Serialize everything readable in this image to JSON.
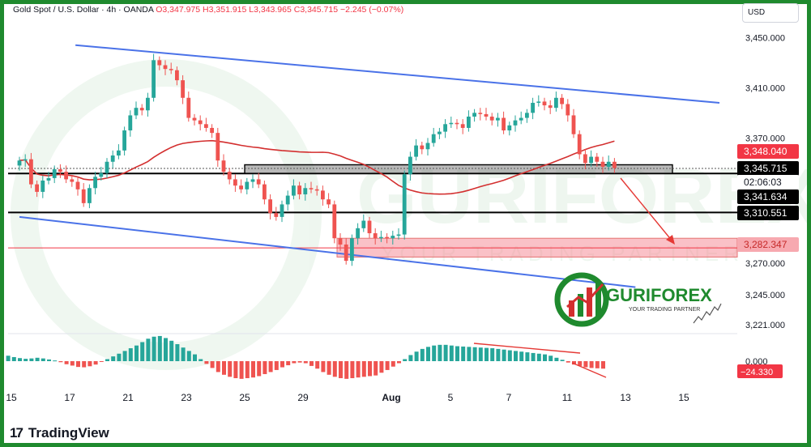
{
  "header": {
    "symbol": "Gold Spot / U.S. Dollar · 4h · OANDA",
    "open": "O3,347.975",
    "high": "H3,351.915",
    "low": "L3,343.965",
    "close": "C3,345.715",
    "change": "−2.245 (−0.07%)"
  },
  "currency_button": "USD",
  "brand": {
    "logo_glyph": "17",
    "name": "TradingView"
  },
  "watermark": {
    "name": "GURIFOREX",
    "tagline": "YOUR TRADING PARTNER"
  },
  "logo": {
    "name": "GURIFOREX",
    "tagline": "YOUR TRADING PARTNER"
  },
  "colors": {
    "bull": "#26a69a",
    "bear": "#ef5350",
    "trend": "#4a72e8",
    "zone": "#f5838f",
    "ma": "#d32f2f",
    "frame": "#1f8a2e"
  },
  "chart_data": {
    "type": "candlestick",
    "timeframe": "4h",
    "ylim": [
      3212,
      3480
    ],
    "y_ticks": [
      "3,450.000",
      "3,410.000",
      "3,370.000",
      "3,270.000",
      "3,245.000",
      "3,221.000"
    ],
    "x_ticks": [
      "15",
      "17",
      "21",
      "23",
      "25",
      "29",
      "Aug",
      "5",
      "7",
      "11",
      "13",
      "15"
    ],
    "price_labels": [
      {
        "text": "3,348.040",
        "value": 3348.04,
        "style": "red"
      },
      {
        "text": "3,345.715",
        "value": 3345.715,
        "style": "dark"
      },
      {
        "text": "02:06:03",
        "value": 3345.715,
        "style": "timer"
      },
      {
        "text": "3,341.634",
        "value": 3341.634,
        "style": "dark"
      },
      {
        "text": "3,310.551",
        "value": 3310.551,
        "style": "dark"
      },
      {
        "text": "3,282.347",
        "value": 3282.347,
        "style": "pink"
      }
    ],
    "horizontal_levels": [
      3341.634,
      3310.551
    ],
    "zone": {
      "low": 3275,
      "high": 3290
    },
    "support_line_value": 3282.347,
    "close_value": 3345.715,
    "channel_upper": [
      [
        4,
        3444
      ],
      [
        50,
        3398
      ]
    ],
    "channel_lower": [
      [
        0,
        3307
      ],
      [
        44,
        3251
      ]
    ],
    "closes": [
      3352,
      3353,
      3333,
      3327,
      3336,
      3338,
      3345,
      3343,
      3337,
      3335,
      3329,
      3318,
      3330,
      3339,
      3342,
      3351,
      3356,
      3360,
      3376,
      3388,
      3394,
      3392,
      3402,
      3432,
      3428,
      3425,
      3424,
      3416,
      3402,
      3386,
      3384,
      3381,
      3378,
      3374,
      3352,
      3343,
      3337,
      3332,
      3329,
      3335,
      3337,
      3333,
      3321,
      3310,
      3307,
      3317,
      3324,
      3332,
      3325,
      3330,
      3329,
      3328,
      3321,
      3317,
      3290,
      3285,
      3272,
      3290,
      3298,
      3304,
      3294,
      3290,
      3291,
      3290,
      3292,
      3293,
      3341,
      3355,
      3364,
      3361,
      3366,
      3373,
      3375,
      3381,
      3382,
      3381,
      3378,
      3387,
      3390,
      3389,
      3387,
      3384,
      3386,
      3376,
      3380,
      3384,
      3386,
      3390,
      3398,
      3399,
      3396,
      3394,
      3402,
      3397,
      3388,
      3373,
      3357,
      3350,
      3355,
      3351,
      3347,
      3351,
      3346
    ],
    "oscillator": {
      "zero_label": "0.000",
      "value_label": "−24.330",
      "values": [
        1.6,
        1.2,
        0.9,
        0.7,
        0.8,
        1.0,
        0.8,
        0.5,
        0.2,
        -0.3,
        -0.9,
        -1.3,
        -1.7,
        -1.8,
        -1.5,
        -1.0,
        -0.2,
        0.6,
        1.4,
        2.2,
        3.0,
        3.8,
        4.6,
        5.6,
        6.6,
        7.2,
        7.4,
        6.8,
        6.0,
        5.0,
        4.0,
        3.0,
        2.0,
        0.6,
        -0.8,
        -2.0,
        -3.2,
        -4.0,
        -4.6,
        -5.0,
        -5.2,
        -5.0,
        -4.8,
        -4.4,
        -3.8,
        -3.2,
        -2.6,
        -1.8,
        -1.2,
        -0.6,
        -0.4,
        -0.6,
        -1.4,
        -2.2,
        -3.2,
        -4.0,
        -4.6,
        -5.0,
        -5.2,
        -5.0,
        -4.8,
        -4.6,
        -4.4,
        -4.2,
        -3.4,
        -2.6,
        -1.6,
        -0.6,
        0.6,
        1.8,
        2.8,
        3.6,
        4.2,
        4.6,
        4.8,
        4.8,
        4.6,
        4.4,
        4.3,
        4.2,
        4.1,
        4.0,
        3.9,
        3.8,
        3.6,
        3.4,
        3.2,
        3.0,
        2.8,
        2.6,
        2.4,
        2.2,
        2.0,
        1.6,
        1.0,
        0.4,
        -0.4,
        -1.0,
        -1.4,
        -1.8,
        -2.0,
        -2.1,
        -2.2
      ]
    }
  }
}
